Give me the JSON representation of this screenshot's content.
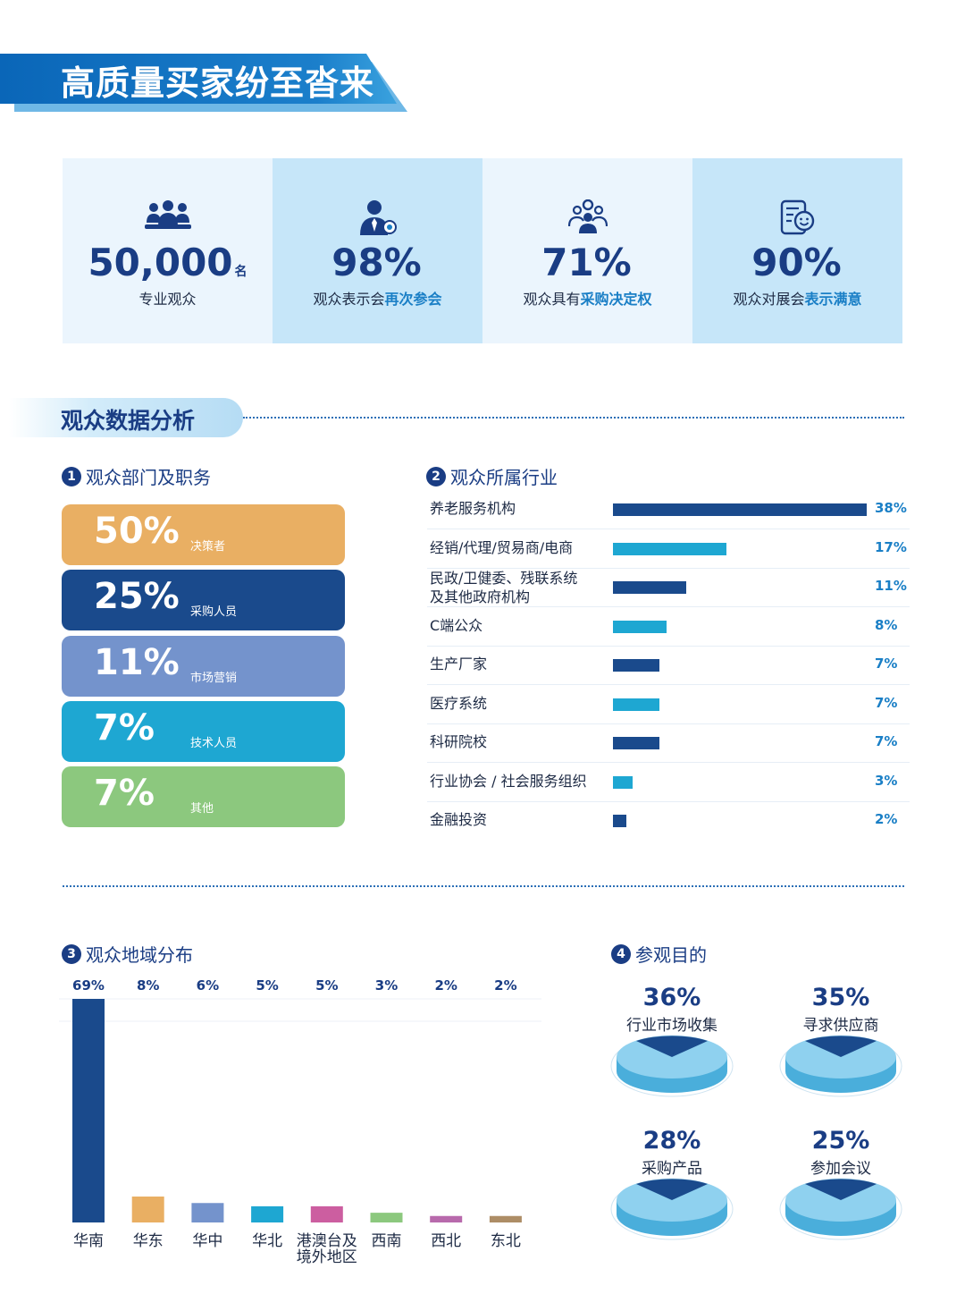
{
  "header": {
    "title": "高质量买家纷至沓来"
  },
  "stats": [
    {
      "icon": "group-icon",
      "value": "50,000",
      "suffix": "名",
      "label": "专业观众",
      "label_hl": ""
    },
    {
      "icon": "person-badge-icon",
      "value": "98%",
      "suffix": "",
      "label": "观众表示会",
      "label_hl": "再次参会"
    },
    {
      "icon": "people-network-icon",
      "value": "71%",
      "suffix": "",
      "label": "观众具有",
      "label_hl": "采购决定权"
    },
    {
      "icon": "satisfaction-icon",
      "value": "90%",
      "suffix": "",
      "label": "观众对展会",
      "label_hl": "表示满意"
    }
  ],
  "section": {
    "title": "观众数据分析"
  },
  "dept": {
    "number": "1",
    "title": "观众部门及职务",
    "items": [
      {
        "pct": "50%",
        "name": "决策者",
        "color": "#e9af63"
      },
      {
        "pct": "25%",
        "name": "采购人员",
        "color": "#1a4a8c"
      },
      {
        "pct": "11%",
        "name": "市场营销",
        "color": "#7493cc"
      },
      {
        "pct": "7%",
        "name": "技术人员",
        "color": "#1ea7d2"
      },
      {
        "pct": "7%",
        "name": "其他",
        "color": "#8cc87e"
      }
    ]
  },
  "industry": {
    "number": "2",
    "title": "观众所属行业",
    "items": [
      {
        "label": "养老服务机构",
        "label2": "",
        "value": 38,
        "pct": "38%",
        "color": "#1a4a8c"
      },
      {
        "label": "经销/代理/贸易商/电商",
        "label2": "",
        "value": 17,
        "pct": "17%",
        "color": "#1ea7d2"
      },
      {
        "label": "民政/卫健委、残联系统",
        "label2": "及其他政府机构",
        "value": 11,
        "pct": "11%",
        "color": "#1a4a8c"
      },
      {
        "label": "C端公众",
        "label2": "",
        "value": 8,
        "pct": "8%",
        "color": "#1ea7d2"
      },
      {
        "label": "生产厂家",
        "label2": "",
        "value": 7,
        "pct": "7%",
        "color": "#1a4a8c"
      },
      {
        "label": "医疗系统",
        "label2": "",
        "value": 7,
        "pct": "7%",
        "color": "#1ea7d2"
      },
      {
        "label": "科研院校",
        "label2": "",
        "value": 7,
        "pct": "7%",
        "color": "#1a4a8c"
      },
      {
        "label": "行业协会 / 社会服务组织",
        "label2": "",
        "value": 3,
        "pct": "3%",
        "color": "#1ea7d2"
      },
      {
        "label": "金融投资",
        "label2": "",
        "value": 2,
        "pct": "2%",
        "color": "#1a4a8c"
      }
    ]
  },
  "region": {
    "number": "3",
    "title": "观众地域分布"
  },
  "purpose": {
    "number": "4",
    "title": "参观目的",
    "items": [
      {
        "pct": "36%",
        "label": "行业市场收集"
      },
      {
        "pct": "35%",
        "label": "寻求供应商"
      },
      {
        "pct": "28%",
        "label": "采购产品"
      },
      {
        "pct": "25%",
        "label": "参加会议"
      }
    ]
  },
  "chart_data": {
    "type": "bar",
    "categories": [
      "华南",
      "华东",
      "华中",
      "华北",
      "港澳台及境外地区",
      "西南",
      "西北",
      "东北"
    ],
    "category_lines": [
      [
        "华南"
      ],
      [
        "华东"
      ],
      [
        "华中"
      ],
      [
        "华北"
      ],
      [
        "港澳台及",
        "境外地区"
      ],
      [
        "西南"
      ],
      [
        "西北"
      ],
      [
        "东北"
      ]
    ],
    "values": [
      69,
      8,
      6,
      5,
      5,
      3,
      2,
      2
    ],
    "value_labels": [
      "69%",
      "8%",
      "6%",
      "5%",
      "5%",
      "3%",
      "2%",
      "2%"
    ],
    "colors": [
      "#1a4a8c",
      "#e9af63",
      "#7493cc",
      "#1ea7d2",
      "#cc5ea0",
      "#8cc87e",
      "#b86aac",
      "#ad8d66"
    ],
    "ylim": [
      0,
      69
    ],
    "grid": true
  }
}
